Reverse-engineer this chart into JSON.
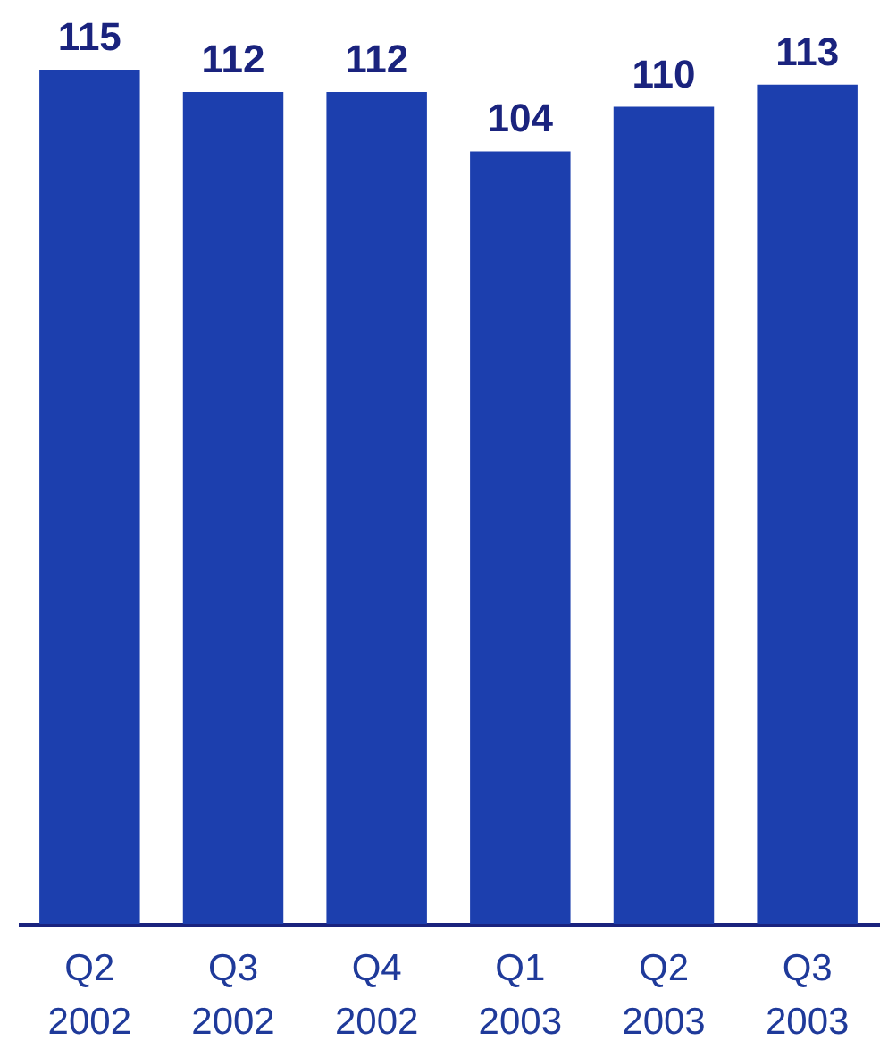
{
  "chart_data": {
    "type": "bar",
    "categories": [
      "Q2 2002",
      "Q3 2002",
      "Q4 2002",
      "Q1 2003",
      "Q2 2003",
      "Q3 2003"
    ],
    "values": [
      115,
      112,
      112,
      104,
      110,
      113
    ],
    "color": "#1c3fae",
    "data_labels": true
  }
}
